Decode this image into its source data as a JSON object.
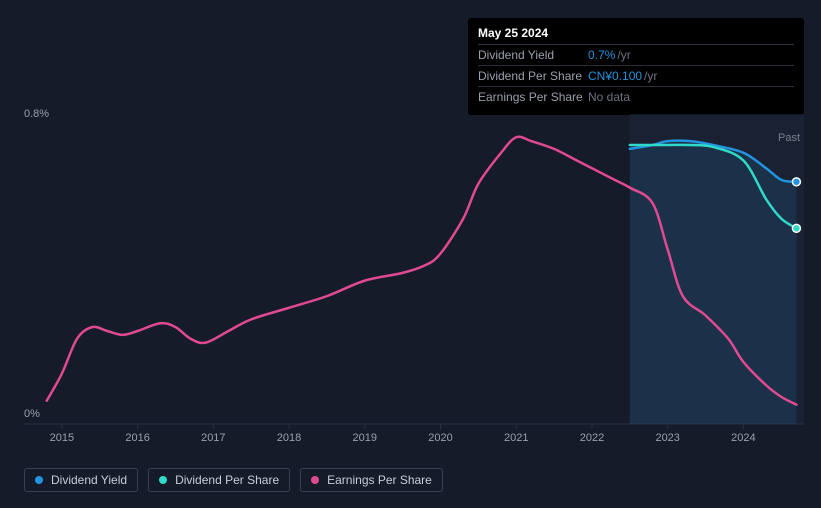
{
  "chart": {
    "type": "line",
    "background_color": "#151b29",
    "plot_background": "#151b29",
    "past_region_fill": "#1e2638",
    "past_region_opacity": 0.6,
    "past_region_start_year": 2022.5,
    "line_width": 2.5,
    "y_axis": {
      "top_label": "0.8%",
      "bottom_label": "0%",
      "min": 0,
      "max": 0.8,
      "label_color": "#9aa0ac",
      "label_fontsize": 11
    },
    "x_axis": {
      "min": 2014.5,
      "max": 2024.8,
      "ticks": [
        2015,
        2016,
        2017,
        2018,
        2019,
        2020,
        2021,
        2022,
        2023,
        2024
      ],
      "tick_label_color": "#9aa0ac",
      "tick_fontsize": 11,
      "grid_color": "#2a3142"
    },
    "past_label": "Past",
    "series": {
      "dividend_yield": {
        "color": "#2394df",
        "area_fill": "#2394df",
        "area_opacity": 0.14,
        "has_area": true,
        "end_marker": true,
        "points": [
          [
            2022.5,
            0.71
          ],
          [
            2022.8,
            0.72
          ],
          [
            2023.0,
            0.73
          ],
          [
            2023.3,
            0.73
          ],
          [
            2023.6,
            0.72
          ],
          [
            2024.0,
            0.7
          ],
          [
            2024.3,
            0.66
          ],
          [
            2024.5,
            0.63
          ],
          [
            2024.7,
            0.625
          ]
        ]
      },
      "dividend_per_share": {
        "color": "#30d9c8",
        "has_area": false,
        "end_marker": true,
        "points": [
          [
            2022.5,
            0.72
          ],
          [
            2022.8,
            0.72
          ],
          [
            2023.0,
            0.72
          ],
          [
            2023.3,
            0.72
          ],
          [
            2023.6,
            0.715
          ],
          [
            2024.0,
            0.68
          ],
          [
            2024.3,
            0.58
          ],
          [
            2024.5,
            0.53
          ],
          [
            2024.7,
            0.505
          ]
        ]
      },
      "earnings_per_share": {
        "color": "#e14a92",
        "has_area": false,
        "end_marker": false,
        "points": [
          [
            2014.8,
            0.06
          ],
          [
            2015.0,
            0.13
          ],
          [
            2015.2,
            0.22
          ],
          [
            2015.4,
            0.25
          ],
          [
            2015.6,
            0.24
          ],
          [
            2015.8,
            0.23
          ],
          [
            2016.0,
            0.24
          ],
          [
            2016.3,
            0.26
          ],
          [
            2016.5,
            0.25
          ],
          [
            2016.7,
            0.22
          ],
          [
            2016.9,
            0.21
          ],
          [
            2017.2,
            0.24
          ],
          [
            2017.5,
            0.27
          ],
          [
            2018.0,
            0.3
          ],
          [
            2018.5,
            0.33
          ],
          [
            2019.0,
            0.37
          ],
          [
            2019.5,
            0.39
          ],
          [
            2019.8,
            0.41
          ],
          [
            2020.0,
            0.44
          ],
          [
            2020.3,
            0.53
          ],
          [
            2020.5,
            0.62
          ],
          [
            2020.8,
            0.7
          ],
          [
            2021.0,
            0.74
          ],
          [
            2021.2,
            0.73
          ],
          [
            2021.5,
            0.71
          ],
          [
            2021.8,
            0.68
          ],
          [
            2022.0,
            0.66
          ],
          [
            2022.3,
            0.63
          ],
          [
            2022.5,
            0.61
          ],
          [
            2022.8,
            0.57
          ],
          [
            2023.0,
            0.45
          ],
          [
            2023.2,
            0.33
          ],
          [
            2023.5,
            0.28
          ],
          [
            2023.8,
            0.22
          ],
          [
            2024.0,
            0.16
          ],
          [
            2024.3,
            0.1
          ],
          [
            2024.5,
            0.07
          ],
          [
            2024.7,
            0.05
          ]
        ]
      }
    }
  },
  "tooltip": {
    "date": "May 25 2024",
    "rows": [
      {
        "label": "Dividend Yield",
        "value": "0.7%",
        "unit": "/yr",
        "value_class": ""
      },
      {
        "label": "Dividend Per Share",
        "value": "CN¥0.100",
        "unit": "/yr",
        "value_class": ""
      },
      {
        "label": "Earnings Per Share",
        "value": "No data",
        "unit": "",
        "value_class": "nodata"
      }
    ]
  },
  "legend": [
    {
      "label": "Dividend Yield",
      "color": "#2394df"
    },
    {
      "label": "Dividend Per Share",
      "color": "#30d9c8"
    },
    {
      "label": "Earnings Per Share",
      "color": "#e14a92"
    }
  ]
}
